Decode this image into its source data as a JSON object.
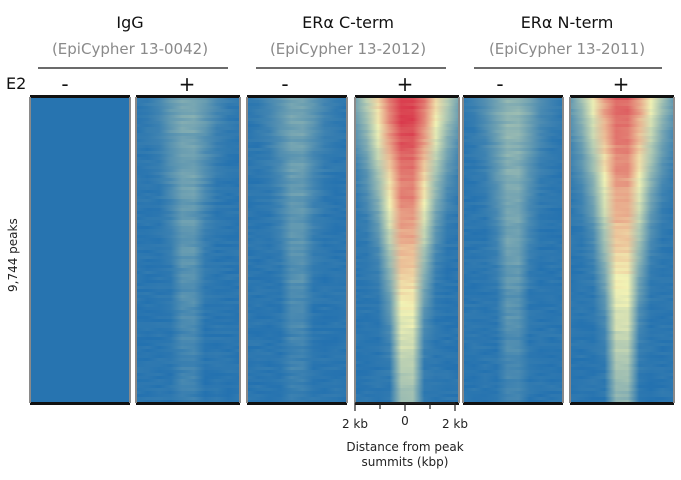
{
  "colors": {
    "low": "#1f6fb0",
    "mid": "#f2f2b4",
    "high": "#d93a4c"
  },
  "groups": [
    {
      "title": "IgG",
      "subtitle": "(EpiCypher 13-0042)"
    },
    {
      "title": "ERα C-term",
      "subtitle": "(EpiCypher 13-2012)"
    },
    {
      "title": "ERα N-term",
      "subtitle": "(EpiCypher 13-2011)"
    }
  ],
  "row_label": "E2",
  "y_label": "9,744 peaks",
  "x_axis": {
    "ticks": [
      "2 kb",
      "0",
      "2 kb"
    ],
    "title_line1": "Distance from peak",
    "title_line2": "summits (kbp)"
  },
  "chart_data": {
    "type": "heatmap",
    "rows": 9744,
    "x_range_kb": [
      -2,
      2
    ],
    "x_tick_values_kb": [
      -2,
      0,
      2
    ],
    "panels": [
      {
        "group": "IgG",
        "condition": "-",
        "signal": 0.0
      },
      {
        "group": "IgG",
        "condition": "+",
        "signal": 0.22
      },
      {
        "group": "ERα C-term",
        "condition": "-",
        "signal": 0.2
      },
      {
        "group": "ERα C-term",
        "condition": "+",
        "signal": 1.0
      },
      {
        "group": "ERα N-term",
        "condition": "-",
        "signal": 0.28
      },
      {
        "group": "ERα N-term",
        "condition": "+",
        "signal": 0.9
      }
    ]
  }
}
